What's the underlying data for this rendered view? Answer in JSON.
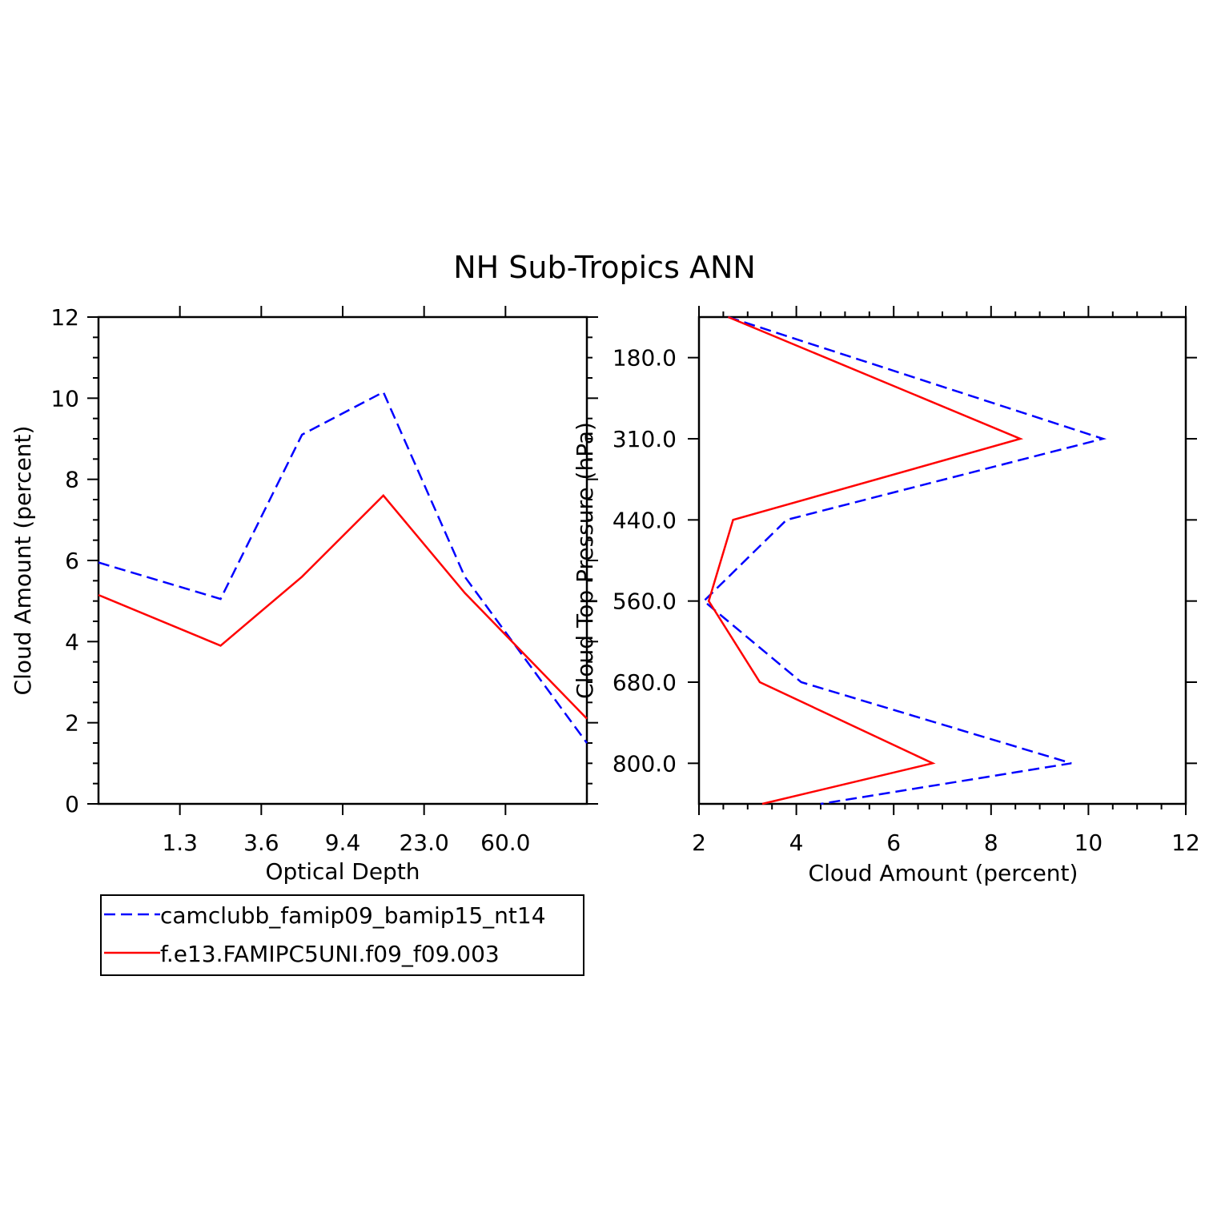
{
  "figure_title": "NH Sub-Tropics ANN",
  "colors": {
    "series1": "#0000ff",
    "series2": "#ff0000",
    "axes": "#000000"
  },
  "legend": [
    {
      "name": "camclubb_famip09_bamip15_nt14",
      "color": "#0000ff",
      "style": "dashed"
    },
    {
      "name": "f.e13.FAMIPC5UNI.f09_f09.003",
      "color": "#ff0000",
      "style": "solid"
    }
  ],
  "chart_data": [
    {
      "type": "line",
      "title": "NH Sub-Tropics ANN",
      "xlabel": "Optical Depth",
      "ylabel": "Cloud Amount (percent)",
      "x_tick_labels": [
        "1.3",
        "3.6",
        "9.4",
        "23.0",
        "60.0"
      ],
      "x_bin_index": [
        0,
        1,
        2,
        3,
        4,
        5
      ],
      "xlim": [
        -0.5,
        5.5
      ],
      "ylim": [
        0,
        12
      ],
      "y_ticks": [
        "0",
        "2",
        "4",
        "6",
        "8",
        "10",
        "12"
      ],
      "series": [
        {
          "name": "camclubb_famip09_bamip15_nt14",
          "x": [
            -0.5,
            1,
            2,
            3,
            4,
            5.5
          ],
          "values": [
            5.95,
            5.05,
            9.1,
            10.15,
            5.6,
            1.5
          ]
        },
        {
          "name": "f.e13.FAMIPC5UNI.f09_f09.003",
          "x": [
            -0.5,
            1,
            2,
            3,
            4,
            5.5
          ],
          "values": [
            5.15,
            3.9,
            5.6,
            7.6,
            5.2,
            2.1
          ]
        }
      ]
    },
    {
      "type": "line",
      "orientation": "vertical-profile",
      "xlabel": "Cloud Amount (percent)",
      "ylabel": "Cloud Top Pressure (hPa)",
      "xlim": [
        2,
        12
      ],
      "x_ticks": [
        "2",
        "4",
        "6",
        "8",
        "10",
        "12"
      ],
      "y_tick_labels": [
        "180.0",
        "310.0",
        "440.0",
        "560.0",
        "680.0",
        "800.0"
      ],
      "ylim_levels": [
        -0.5,
        5.5
      ],
      "series": [
        {
          "name": "camclubb_famip09_bamip15_nt14",
          "level": [
            -0.5,
            1,
            2,
            3,
            4,
            5,
            5.5
          ],
          "values": [
            2.6,
            10.3,
            3.8,
            2.1,
            4.1,
            9.65,
            4.5
          ]
        },
        {
          "name": "f.e13.FAMIPC5UNI.f09_f09.003",
          "level": [
            -0.5,
            1,
            2,
            3,
            4,
            5,
            5.5
          ],
          "values": [
            2.6,
            8.6,
            2.7,
            2.2,
            3.25,
            6.8,
            3.3
          ]
        }
      ]
    }
  ]
}
